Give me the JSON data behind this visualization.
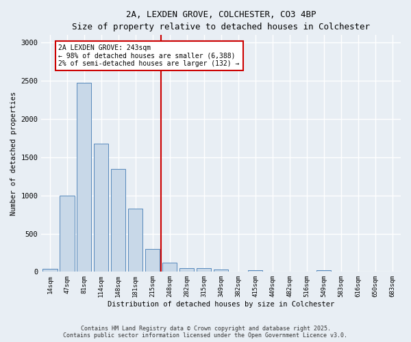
{
  "title_line1": "2A, LEXDEN GROVE, COLCHESTER, CO3 4BP",
  "title_line2": "Size of property relative to detached houses in Colchester",
  "xlabel": "Distribution of detached houses by size in Colchester",
  "ylabel": "Number of detached properties",
  "categories": [
    "14sqm",
    "47sqm",
    "81sqm",
    "114sqm",
    "148sqm",
    "181sqm",
    "215sqm",
    "248sqm",
    "282sqm",
    "315sqm",
    "349sqm",
    "382sqm",
    "415sqm",
    "449sqm",
    "482sqm",
    "516sqm",
    "549sqm",
    "583sqm",
    "616sqm",
    "650sqm",
    "683sqm"
  ],
  "values": [
    40,
    1000,
    2475,
    1680,
    1350,
    830,
    295,
    120,
    50,
    45,
    30,
    0,
    25,
    0,
    0,
    0,
    20,
    0,
    0,
    0,
    0
  ],
  "bar_color": "#c8d8e8",
  "bar_edge_color": "#5588bb",
  "vline_x_index": 7.0,
  "vline_color": "#cc0000",
  "annotation_text": "2A LEXDEN GROVE: 243sqm\n← 98% of detached houses are smaller (6,388)\n2% of semi-detached houses are larger (132) →",
  "annotation_box_color": "#ffffff",
  "annotation_box_edge_color": "#cc0000",
  "ylim": [
    0,
    3100
  ],
  "yticks": [
    0,
    500,
    1000,
    1500,
    2000,
    2500,
    3000
  ],
  "footer_line1": "Contains HM Land Registry data © Crown copyright and database right 2025.",
  "footer_line2": "Contains public sector information licensed under the Open Government Licence v3.0.",
  "background_color": "#e8eef4",
  "plot_background_color": "#e8eef4",
  "grid_color": "#ffffff",
  "font_family": "DejaVu Sans Mono"
}
